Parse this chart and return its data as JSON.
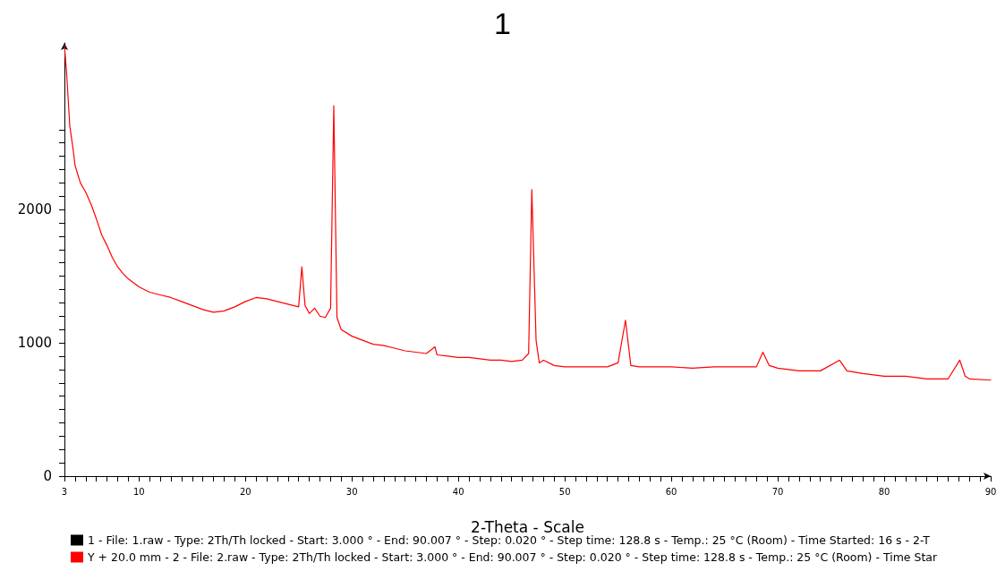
{
  "chart_data": {
    "type": "line",
    "title": "1",
    "xlabel": "2-Theta - Scale",
    "x": [
      3,
      3.2,
      3.5,
      3.8,
      4,
      4.5,
      5,
      5.5,
      6,
      6.5,
      7,
      7.5,
      8,
      8.5,
      9,
      10,
      11,
      12,
      13,
      14,
      15,
      16,
      17,
      18,
      19,
      20,
      21,
      22,
      23,
      24,
      25,
      25.3,
      25.6,
      26,
      26.5,
      27,
      27.5,
      28,
      28.3,
      28.6,
      29,
      30,
      31,
      32,
      33,
      34,
      35,
      36,
      37,
      37.8,
      38,
      39,
      40,
      41,
      42,
      43,
      44,
      45,
      46,
      46.6,
      46.9,
      47.3,
      47.6,
      48,
      49,
      50,
      52,
      54,
      55,
      55.7,
      56.2,
      57,
      60,
      62,
      64,
      66,
      68,
      68.6,
      69.2,
      70,
      72,
      74,
      75.8,
      76.5,
      78,
      80,
      82,
      84,
      86,
      87.1,
      87.6,
      88,
      90
    ],
    "series": [
      {
        "name": "1 - File: 1.raw - Type: 2Th/Th locked - Start: 3.000 ° - End: 90.007 ° - Step: 0.020 ° - Step time: 128.8 s - Temp.: 25 °C (Room) - Time Started: 16 s - 2-T",
        "color": "#000000",
        "values": [
          null,
          null,
          null,
          null,
          null,
          null,
          null,
          null,
          null,
          null,
          null,
          null,
          null,
          null,
          null,
          null,
          null,
          null,
          null,
          null,
          null,
          null,
          null,
          null,
          null,
          null,
          null,
          null,
          null,
          null,
          null,
          null,
          null,
          null,
          null,
          null,
          null,
          null,
          null,
          null,
          null,
          null,
          null,
          null,
          null,
          null,
          null,
          null,
          null,
          null,
          null,
          null,
          null,
          null,
          null,
          null,
          null,
          null,
          null,
          null,
          null,
          null,
          null,
          null,
          null,
          null,
          null,
          null,
          null,
          null,
          null,
          null,
          null,
          null,
          null,
          null,
          null,
          null,
          null,
          null,
          null,
          null,
          null,
          null,
          null,
          null,
          null,
          null,
          null,
          null,
          null,
          null,
          null
        ]
      },
      {
        "name": "Y + 20.0 mm - 2 - File: 2.raw - Type: 2Th/Th locked - Start: 3.000 ° - End: 90.007 ° - Step: 0.020 ° - Step time: 128.8 s - Temp.: 25 °C (Room) - Time Star",
        "color": "#ff0000",
        "values": [
          3230,
          3030,
          2630,
          2460,
          2330,
          2200,
          2130,
          2040,
          1930,
          1810,
          1730,
          1640,
          1570,
          1520,
          1480,
          1420,
          1380,
          1360,
          1340,
          1310,
          1280,
          1250,
          1230,
          1240,
          1270,
          1310,
          1340,
          1330,
          1310,
          1290,
          1270,
          1570,
          1280,
          1220,
          1260,
          1200,
          1190,
          1260,
          2780,
          1190,
          1100,
          1050,
          1020,
          990,
          980,
          960,
          940,
          930,
          920,
          970,
          910,
          900,
          890,
          890,
          880,
          870,
          870,
          860,
          870,
          920,
          2150,
          1020,
          850,
          870,
          830,
          820,
          820,
          820,
          850,
          1170,
          830,
          820,
          820,
          810,
          820,
          820,
          820,
          930,
          830,
          810,
          790,
          790,
          870,
          790,
          770,
          750,
          750,
          730,
          730,
          870,
          750,
          730,
          720
        ]
      }
    ],
    "xlim": [
      3,
      90
    ],
    "xticks": [
      3,
      {
        "value": 4,
        "label": null
      },
      {
        "value": 5,
        "label": null
      },
      {
        "value": 6,
        "label": null
      },
      {
        "value": 7,
        "label": null
      },
      {
        "value": 8,
        "label": null
      },
      {
        "value": 9,
        "label": null
      },
      10,
      {
        "value": 11,
        "label": null
      },
      {
        "value": 12,
        "label": null
      },
      {
        "value": 13,
        "label": null
      },
      {
        "value": 14,
        "label": null
      },
      {
        "value": 15,
        "label": null
      },
      {
        "value": 16,
        "label": null
      },
      {
        "value": 17,
        "label": null
      },
      {
        "value": 18,
        "label": null
      },
      {
        "value": 19,
        "label": null
      },
      20,
      {
        "value": 21,
        "label": null
      },
      {
        "value": 22,
        "label": null
      },
      {
        "value": 23,
        "label": null
      },
      {
        "value": 24,
        "label": null
      },
      {
        "value": 25,
        "label": null
      },
      {
        "value": 26,
        "label": null
      },
      {
        "value": 27,
        "label": null
      },
      {
        "value": 28,
        "label": null
      },
      {
        "value": 29,
        "label": null
      },
      30,
      {
        "value": 31,
        "label": null
      },
      {
        "value": 32,
        "label": null
      },
      {
        "value": 33,
        "label": null
      },
      {
        "value": 34,
        "label": null
      },
      {
        "value": 35,
        "label": null
      },
      {
        "value": 36,
        "label": null
      },
      {
        "value": 37,
        "label": null
      },
      {
        "value": 38,
        "label": null
      },
      {
        "value": 39,
        "label": null
      },
      40,
      {
        "value": 41,
        "label": null
      },
      {
        "value": 42,
        "label": null
      },
      {
        "value": 43,
        "label": null
      },
      {
        "value": 44,
        "label": null
      },
      {
        "value": 45,
        "label": null
      },
      {
        "value": 46,
        "label": null
      },
      {
        "value": 47,
        "label": null
      },
      {
        "value": 48,
        "label": null
      },
      {
        "value": 49,
        "label": null
      },
      50,
      {
        "value": 51,
        "label": null
      },
      {
        "value": 52,
        "label": null
      },
      {
        "value": 53,
        "label": null
      },
      {
        "value": 54,
        "label": null
      },
      {
        "value": 55,
        "label": null
      },
      {
        "value": 56,
        "label": null
      },
      {
        "value": 57,
        "label": null
      },
      {
        "value": 58,
        "label": null
      },
      {
        "value": 59,
        "label": null
      },
      60,
      {
        "value": 61,
        "label": null
      },
      {
        "value": 62,
        "label": null
      },
      {
        "value": 63,
        "label": null
      },
      {
        "value": 64,
        "label": null
      },
      {
        "value": 65,
        "label": null
      },
      {
        "value": 66,
        "label": null
      },
      {
        "value": 67,
        "label": null
      },
      {
        "value": 68,
        "label": null
      },
      {
        "value": 69,
        "label": null
      },
      70,
      {
        "value": 71,
        "label": null
      },
      {
        "value": 72,
        "label": null
      },
      {
        "value": 73,
        "label": null
      },
      {
        "value": 74,
        "label": null
      },
      {
        "value": 75,
        "label": null
      },
      {
        "value": 76,
        "label": null
      },
      {
        "value": 77,
        "label": null
      },
      {
        "value": 78,
        "label": null
      },
      {
        "value": 79,
        "label": null
      },
      80,
      {
        "value": 81,
        "label": null
      },
      {
        "value": 82,
        "label": null
      },
      {
        "value": 83,
        "label": null
      },
      {
        "value": 84,
        "label": null
      },
      {
        "value": 85,
        "label": null
      },
      {
        "value": 86,
        "label": null
      },
      {
        "value": 87,
        "label": null
      },
      {
        "value": 88,
        "label": null
      },
      {
        "value": 89,
        "label": null
      },
      90
    ],
    "ylim": [
      0,
      3250
    ],
    "yticks": [
      0,
      {
        "value": 100,
        "label": null
      },
      {
        "value": 200,
        "label": null
      },
      {
        "value": 300,
        "label": null
      },
      {
        "value": 400,
        "label": null
      },
      {
        "value": 500,
        "label": null
      },
      {
        "value": 600,
        "label": null
      },
      {
        "value": 700,
        "label": null
      },
      {
        "value": 800,
        "label": null
      },
      {
        "value": 900,
        "label": null
      },
      1000,
      {
        "value": 1100,
        "label": null
      },
      {
        "value": 1200,
        "label": null
      },
      {
        "value": 1300,
        "label": null
      },
      {
        "value": 1400,
        "label": null
      },
      {
        "value": 1500,
        "label": null
      },
      {
        "value": 1600,
        "label": null
      },
      {
        "value": 1700,
        "label": null
      },
      {
        "value": 1800,
        "label": null
      },
      {
        "value": 1900,
        "label": null
      },
      2000,
      {
        "value": 2100,
        "label": null
      },
      {
        "value": 2200,
        "label": null
      },
      {
        "value": 2300,
        "label": null
      },
      {
        "value": 2400,
        "label": null
      },
      {
        "value": 2500,
        "label": null
      },
      {
        "value": 2600,
        "label": null
      }
    ],
    "grid": false,
    "legend": "bottom",
    "marker": "none",
    "line_style": "solid"
  }
}
